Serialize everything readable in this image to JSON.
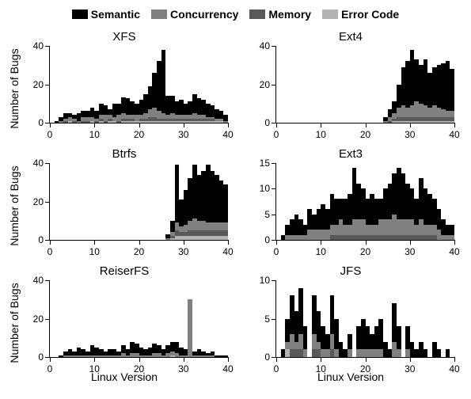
{
  "legend": {
    "items": [
      {
        "label": "Semantic",
        "color": "#000000"
      },
      {
        "label": "Concurrency",
        "color": "#808080"
      },
      {
        "label": "Memory",
        "color": "#595959"
      },
      {
        "label": "Error Code",
        "color": "#b3b3b3"
      }
    ]
  },
  "axes": {
    "ylabel": "Number of Bugs",
    "xlabel": "Linux Version",
    "xticks": [
      0,
      10,
      20,
      30,
      40
    ]
  },
  "stack_order": [
    "Error Code",
    "Memory",
    "Concurrency",
    "Semantic"
  ],
  "colors": {
    "Semantic": "#000000",
    "Concurrency": "#808080",
    "Memory": "#595959",
    "Error Code": "#b3b3b3"
  },
  "panels": [
    {
      "title": "XFS",
      "ymax": 40,
      "ytick_step": 20,
      "n": 40,
      "show_ylabel": true,
      "show_xlabel": false,
      "data": {
        "Semantic": [
          0,
          1,
          2,
          3,
          2,
          2,
          4,
          3,
          3,
          5,
          4,
          6,
          5,
          3,
          7,
          6,
          8,
          9,
          7,
          6,
          8,
          10,
          12,
          18,
          26,
          33,
          10,
          9,
          7,
          8,
          6,
          7,
          10,
          9,
          8,
          7,
          6,
          5,
          4,
          3
        ],
        "Concurrency": [
          0,
          0,
          1,
          1,
          2,
          1,
          1,
          2,
          2,
          2,
          1,
          2,
          3,
          2,
          2,
          3,
          3,
          2,
          2,
          3,
          2,
          3,
          4,
          5,
          4,
          3,
          2,
          3,
          2,
          2,
          2,
          2,
          3,
          2,
          2,
          1,
          1,
          1,
          1,
          1
        ],
        "Memory": [
          0,
          0,
          0,
          1,
          0,
          1,
          0,
          1,
          1,
          0,
          1,
          1,
          1,
          1,
          0,
          1,
          1,
          1,
          1,
          0,
          1,
          1,
          2,
          2,
          1,
          1,
          1,
          1,
          1,
          1,
          1,
          1,
          1,
          1,
          1,
          1,
          1,
          0,
          0,
          0
        ],
        "Error Code": [
          0,
          0,
          0,
          0,
          1,
          0,
          0,
          0,
          0,
          1,
          0,
          1,
          0,
          1,
          1,
          0,
          1,
          1,
          1,
          1,
          1,
          1,
          1,
          1,
          1,
          1,
          1,
          1,
          1,
          1,
          1,
          1,
          1,
          1,
          1,
          1,
          1,
          1,
          1,
          0
        ]
      }
    },
    {
      "title": "Ext4",
      "ymax": 40,
      "ytick_step": 20,
      "n": 40,
      "show_ylabel": false,
      "show_xlabel": false,
      "data": {
        "Semantic": [
          0,
          0,
          0,
          0,
          0,
          0,
          0,
          0,
          0,
          0,
          0,
          0,
          0,
          0,
          0,
          0,
          0,
          0,
          0,
          0,
          0,
          0,
          0,
          0,
          2,
          4,
          6,
          12,
          20,
          24,
          29,
          22,
          20,
          24,
          18,
          20,
          22,
          24,
          26,
          22
        ],
        "Concurrency": [
          0,
          0,
          0,
          0,
          0,
          0,
          0,
          0,
          0,
          0,
          0,
          0,
          0,
          0,
          0,
          0,
          0,
          0,
          0,
          0,
          0,
          0,
          0,
          0,
          1,
          2,
          3,
          5,
          6,
          5,
          6,
          8,
          7,
          6,
          5,
          6,
          5,
          4,
          3,
          3
        ],
        "Memory": [
          0,
          0,
          0,
          0,
          0,
          0,
          0,
          0,
          0,
          0,
          0,
          0,
          0,
          0,
          0,
          0,
          0,
          0,
          0,
          0,
          0,
          0,
          0,
          0,
          0,
          1,
          1,
          2,
          2,
          2,
          2,
          2,
          2,
          2,
          2,
          2,
          2,
          2,
          2,
          2
        ],
        "Error Code": [
          0,
          0,
          0,
          0,
          0,
          0,
          0,
          0,
          0,
          0,
          0,
          0,
          0,
          0,
          0,
          0,
          0,
          0,
          0,
          0,
          0,
          0,
          0,
          0,
          0,
          0,
          1,
          1,
          1,
          1,
          1,
          1,
          1,
          1,
          1,
          1,
          1,
          1,
          1,
          1
        ]
      }
    },
    {
      "title": "Btrfs",
      "ymax": 40,
      "ytick_step": 20,
      "n": 40,
      "show_ylabel": true,
      "show_xlabel": false,
      "data": {
        "Semantic": [
          0,
          0,
          0,
          0,
          0,
          0,
          0,
          0,
          0,
          0,
          0,
          0,
          0,
          0,
          0,
          0,
          0,
          0,
          0,
          0,
          0,
          0,
          0,
          0,
          0,
          0,
          2,
          6,
          30,
          14,
          18,
          22,
          28,
          24,
          26,
          30,
          27,
          25,
          22,
          20
        ],
        "Concurrency": [
          0,
          0,
          0,
          0,
          0,
          0,
          0,
          0,
          0,
          0,
          0,
          0,
          0,
          0,
          0,
          0,
          0,
          0,
          0,
          0,
          0,
          0,
          0,
          0,
          0,
          0,
          1,
          2,
          4,
          3,
          4,
          5,
          6,
          5,
          5,
          4,
          4,
          4,
          4,
          4
        ],
        "Memory": [
          0,
          0,
          0,
          0,
          0,
          0,
          0,
          0,
          0,
          0,
          0,
          0,
          0,
          0,
          0,
          0,
          0,
          0,
          0,
          0,
          0,
          0,
          0,
          0,
          0,
          0,
          0,
          1,
          3,
          2,
          2,
          3,
          3,
          3,
          3,
          3,
          3,
          3,
          3,
          3
        ],
        "Error Code": [
          0,
          0,
          0,
          0,
          0,
          0,
          0,
          0,
          0,
          0,
          0,
          0,
          0,
          0,
          0,
          0,
          0,
          0,
          0,
          0,
          0,
          0,
          0,
          0,
          0,
          0,
          0,
          1,
          2,
          2,
          2,
          2,
          2,
          2,
          2,
          2,
          2,
          2,
          2,
          2
        ]
      }
    },
    {
      "title": "Ext3",
      "ymax": 15,
      "ytick_step": 5,
      "n": 40,
      "show_ylabel": false,
      "show_xlabel": false,
      "data": {
        "Semantic": [
          0,
          1,
          2,
          3,
          4,
          3,
          2,
          4,
          3,
          4,
          5,
          4,
          6,
          5,
          4,
          5,
          6,
          10,
          7,
          6,
          5,
          6,
          5,
          4,
          6,
          7,
          8,
          10,
          9,
          7,
          6,
          5,
          8,
          7,
          6,
          5,
          4,
          3,
          2,
          2
        ],
        "Concurrency": [
          0,
          0,
          1,
          1,
          1,
          1,
          1,
          2,
          2,
          2,
          2,
          2,
          2,
          2,
          3,
          2,
          2,
          3,
          3,
          3,
          2,
          2,
          2,
          3,
          3,
          3,
          4,
          3,
          3,
          3,
          3,
          2,
          3,
          2,
          2,
          2,
          2,
          1,
          1,
          1
        ],
        "Memory": [
          0,
          0,
          0,
          0,
          0,
          0,
          0,
          0,
          0,
          0,
          0,
          0,
          1,
          1,
          1,
          1,
          1,
          1,
          1,
          1,
          1,
          1,
          1,
          1,
          1,
          1,
          1,
          1,
          1,
          1,
          1,
          1,
          1,
          1,
          1,
          1,
          0,
          0,
          0,
          0
        ],
        "Error Code": [
          0,
          0,
          0,
          0,
          0,
          0,
          0,
          0,
          0,
          0,
          0,
          0,
          0,
          0,
          0,
          0,
          0,
          0,
          0,
          0,
          0,
          0,
          0,
          0,
          0,
          0,
          0,
          0,
          0,
          0,
          0,
          0,
          0,
          0,
          0,
          0,
          0,
          0,
          0,
          0
        ]
      }
    },
    {
      "title": "ReiserFS",
      "ymax": 40,
      "ytick_step": 20,
      "n": 40,
      "show_ylabel": true,
      "show_xlabel": true,
      "data": {
        "Semantic": [
          0,
          0,
          1,
          2,
          3,
          2,
          4,
          3,
          2,
          5,
          4,
          3,
          2,
          3,
          3,
          2,
          4,
          3,
          6,
          5,
          4,
          3,
          4,
          5,
          4,
          3,
          4,
          5,
          6,
          4,
          3,
          0,
          2,
          3,
          2,
          1,
          2,
          1,
          1,
          1
        ],
        "Concurrency": [
          0,
          0,
          0,
          1,
          1,
          1,
          1,
          1,
          1,
          1,
          1,
          1,
          1,
          1,
          1,
          1,
          2,
          1,
          2,
          2,
          1,
          1,
          1,
          2,
          2,
          1,
          2,
          2,
          2,
          1,
          1,
          30,
          1,
          1,
          1,
          1,
          1,
          0,
          0,
          0
        ],
        "Memory": [
          0,
          0,
          0,
          0,
          0,
          0,
          0,
          0,
          0,
          0,
          0,
          0,
          0,
          0,
          0,
          0,
          0,
          0,
          0,
          0,
          0,
          0,
          0,
          0,
          0,
          0,
          0,
          0,
          0,
          0,
          0,
          0,
          0,
          0,
          0,
          0,
          0,
          0,
          0,
          0
        ],
        "Error Code": [
          0,
          0,
          0,
          0,
          0,
          0,
          0,
          0,
          0,
          0,
          0,
          0,
          0,
          0,
          0,
          0,
          0,
          0,
          0,
          0,
          0,
          0,
          0,
          0,
          0,
          0,
          0,
          1,
          0,
          0,
          0,
          0,
          0,
          0,
          0,
          0,
          0,
          0,
          0,
          0
        ]
      }
    },
    {
      "title": "JFS",
      "ymax": 10,
      "ytick_step": 5,
      "n": 40,
      "show_ylabel": false,
      "show_xlabel": true,
      "data": {
        "Semantic": [
          0,
          1,
          3,
          5,
          4,
          6,
          3,
          0,
          5,
          4,
          3,
          2,
          5,
          4,
          2,
          1,
          2,
          0,
          3,
          4,
          3,
          2,
          3,
          4,
          2,
          1,
          5,
          3,
          0,
          3,
          2,
          1,
          2,
          1,
          0,
          2,
          1,
          0,
          1,
          0
        ],
        "Concurrency": [
          0,
          0,
          1,
          2,
          1,
          2,
          1,
          0,
          2,
          1,
          1,
          1,
          2,
          1,
          0,
          0,
          1,
          0,
          1,
          1,
          1,
          1,
          1,
          1,
          0,
          0,
          2,
          1,
          0,
          1,
          0,
          0,
          0,
          0,
          0,
          0,
          0,
          0,
          0,
          0
        ],
        "Memory": [
          0,
          0,
          0,
          1,
          1,
          1,
          0,
          0,
          1,
          1,
          0,
          0,
          1,
          0,
          0,
          0,
          0,
          0,
          0,
          0,
          0,
          0,
          0,
          0,
          0,
          0,
          0,
          0,
          0,
          0,
          0,
          0,
          0,
          0,
          0,
          0,
          0,
          0,
          0,
          0
        ],
        "Error Code": [
          0,
          0,
          1,
          0,
          0,
          0,
          0,
          0,
          0,
          0,
          0,
          0,
          0,
          0,
          0,
          0,
          0,
          0,
          0,
          0,
          0,
          0,
          0,
          0,
          0,
          0,
          0,
          0,
          0,
          0,
          0,
          0,
          0,
          0,
          0,
          0,
          0,
          0,
          0,
          0
        ]
      }
    }
  ],
  "styling": {
    "title_fontsize": 15,
    "axis_label_fontsize": 14,
    "tick_fontsize": 12,
    "legend_fontsize": 14,
    "background_color": "#ffffff",
    "axis_color": "#000000"
  }
}
